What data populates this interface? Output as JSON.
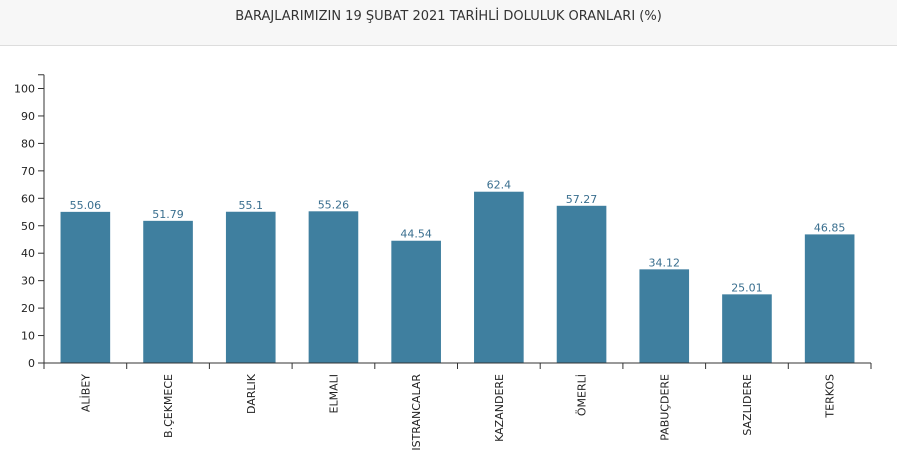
{
  "chart_data": {
    "type": "bar",
    "title": "BARAJLARIMIZIN 19 ŞUBAT 2021 TARİHLİ DOLULUK ORANLARI (%)",
    "categories": [
      "ALİBEY",
      "B.ÇEKMECE",
      "DARLIK",
      "ELMALI",
      "ISTRANCALAR",
      "KAZANDERE",
      "ÖMERLİ",
      "PABUÇDERE",
      "SAZLIDERE",
      "TERKOS"
    ],
    "values": [
      55.06,
      51.79,
      55.1,
      55.26,
      44.54,
      62.4,
      57.27,
      34.12,
      25.01,
      46.85
    ],
    "data_labels": [
      "55.06",
      "51.79",
      "55.1",
      "55.26",
      "44.54",
      "62.4",
      "57.27",
      "34.12",
      "25.01",
      "46.85"
    ],
    "yticks": [
      "0",
      "10",
      "20",
      "30",
      "40",
      "50",
      "60",
      "70",
      "80",
      "90",
      "100"
    ],
    "ylim": [
      0,
      105
    ],
    "grid": false,
    "legend": "none"
  },
  "colors": {
    "bar": "#3f7f9f",
    "data_label": "#3a6f8f",
    "axis": "#333333"
  }
}
